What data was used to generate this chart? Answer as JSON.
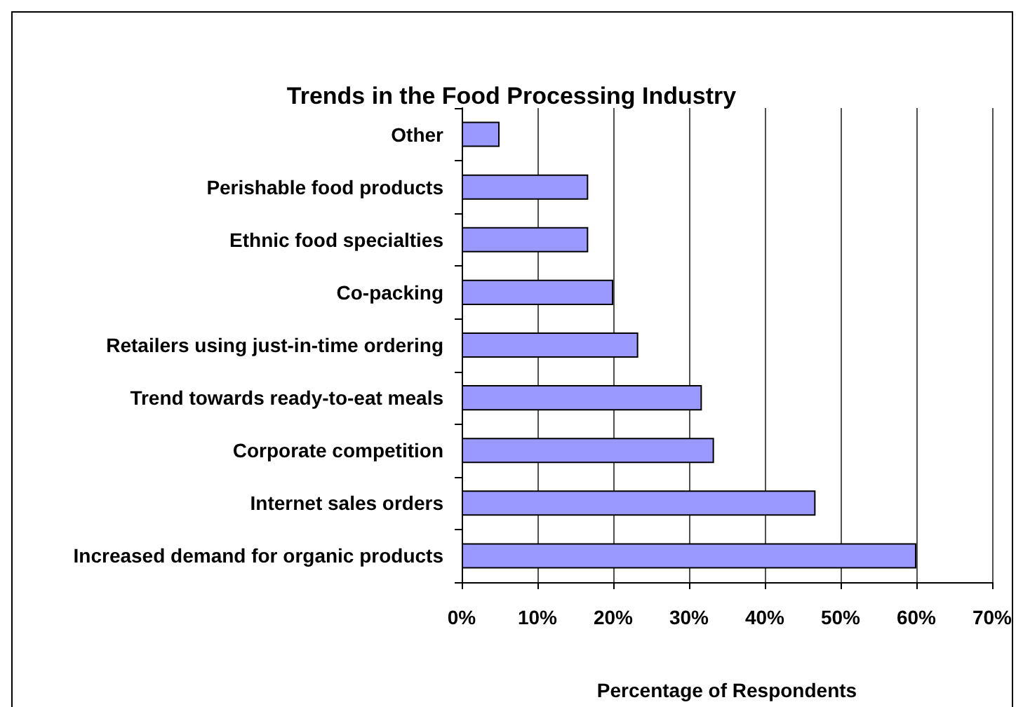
{
  "chart_data": {
    "type": "bar",
    "orientation": "horizontal",
    "title": "Trends in the Food Processing Industry",
    "xlabel": "Percentage of Respondents",
    "categories": [
      "Other",
      "Perishable food products",
      "Ethnic food specialties",
      "Co-packing",
      "Retailers using just-in-time ordering",
      "Trend towards ready-to-eat meals",
      "Corporate competition",
      "Internet sales orders",
      "Increased demand for organic products"
    ],
    "values": [
      5,
      16.7,
      16.7,
      20,
      23.3,
      31.7,
      33.3,
      46.7,
      60
    ],
    "color": "#9999ff",
    "xlim": [
      0,
      70
    ],
    "xticks": [
      {
        "value": 0,
        "label": "0%"
      },
      {
        "value": 10,
        "label": "10%"
      },
      {
        "value": 20,
        "label": "20%"
      },
      {
        "value": 30,
        "label": "30%"
      },
      {
        "value": 40,
        "label": "40%"
      },
      {
        "value": 50,
        "label": "50%"
      },
      {
        "value": 60,
        "label": "60%"
      },
      {
        "value": 70,
        "label": "70%"
      }
    ],
    "grid": "x"
  }
}
